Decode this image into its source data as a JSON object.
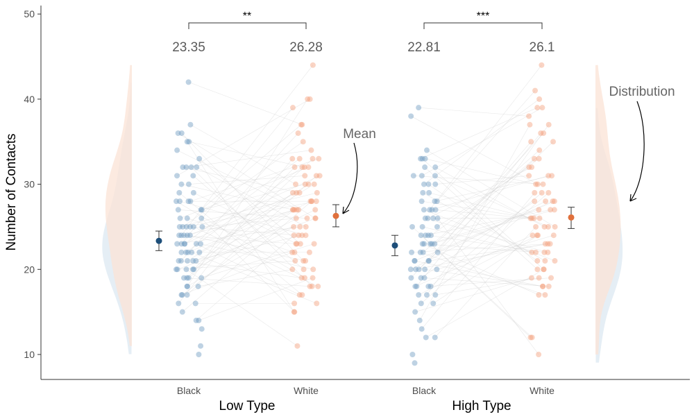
{
  "chart_data": {
    "type": "scatter",
    "title": "",
    "ylabel": "Number of Contacts",
    "ylim": [
      7,
      51
    ],
    "yticks": [
      10,
      20,
      30,
      40,
      50
    ],
    "grid": false,
    "colors": {
      "black_point": "#6f9bc0",
      "white_point": "#f4a07d",
      "black_mean": "#1d4e79",
      "white_mean": "#e0703c",
      "black_density": "#dce8f2",
      "white_density": "#fbe3d6",
      "overlap_density": "#e8dfdc",
      "line": "#cccccc"
    },
    "groups": [
      {
        "name": "Low Type",
        "categories": [
          "Black",
          "White"
        ],
        "means": [
          23.35,
          26.28
        ],
        "mean_labels": [
          "23.35",
          "26.28"
        ],
        "error_bars": [
          [
            22.2,
            24.5
          ],
          [
            25.0,
            27.6
          ]
        ],
        "significance": "**",
        "density_side": "left",
        "black_values": [
          42,
          37,
          36,
          36,
          35,
          35,
          34,
          33,
          32,
          32,
          32,
          32,
          31,
          31,
          30,
          30,
          29,
          29,
          28,
          28,
          28,
          28,
          27,
          27,
          27,
          26,
          26,
          26,
          25,
          25,
          25,
          25,
          25,
          25,
          24,
          24,
          24,
          24,
          24,
          23,
          23,
          23,
          23,
          23,
          23,
          22,
          22,
          22,
          22,
          22,
          21,
          21,
          21,
          21,
          21,
          20,
          20,
          20,
          20,
          20,
          19,
          19,
          19,
          19,
          18,
          18,
          18,
          17,
          17,
          17,
          16,
          16,
          15,
          14,
          14,
          13,
          11,
          10
        ],
        "white_values": [
          44,
          40,
          40,
          39,
          37,
          37,
          36,
          35,
          34,
          33,
          33,
          33,
          33,
          32,
          32,
          32,
          32,
          31,
          31,
          31,
          30,
          30,
          30,
          30,
          29,
          29,
          29,
          29,
          28,
          28,
          28,
          28,
          27,
          27,
          27,
          27,
          27,
          27,
          26,
          26,
          26,
          26,
          25,
          25,
          25,
          24,
          24,
          24,
          24,
          23,
          23,
          23,
          23,
          22,
          22,
          22,
          21,
          21,
          21,
          20,
          20,
          20,
          19,
          19,
          19,
          18,
          18,
          18,
          17,
          17,
          16,
          16,
          15,
          15,
          11
        ]
      },
      {
        "name": "High Type",
        "categories": [
          "Black",
          "White"
        ],
        "means": [
          22.81,
          26.1
        ],
        "mean_labels": [
          "22.81",
          "26.1"
        ],
        "error_bars": [
          [
            21.6,
            24.0
          ],
          [
            24.8,
            27.3
          ]
        ],
        "significance": "***",
        "density_side": "right",
        "black_values": [
          39,
          38,
          34,
          33,
          33,
          33,
          32,
          32,
          31,
          31,
          31,
          30,
          30,
          30,
          29,
          29,
          28,
          28,
          28,
          27,
          27,
          27,
          27,
          26,
          26,
          26,
          26,
          25,
          25,
          25,
          24,
          24,
          24,
          24,
          23,
          23,
          23,
          23,
          23,
          22,
          22,
          22,
          22,
          21,
          21,
          21,
          21,
          20,
          20,
          20,
          20,
          20,
          19,
          19,
          19,
          18,
          18,
          18,
          18,
          17,
          17,
          17,
          16,
          16,
          15,
          14,
          13,
          12,
          12,
          10,
          9
        ],
        "white_values": [
          44,
          41,
          40,
          39,
          39,
          38,
          37,
          37,
          36,
          36,
          35,
          35,
          34,
          33,
          33,
          32,
          32,
          31,
          31,
          31,
          30,
          30,
          30,
          29,
          29,
          29,
          28,
          28,
          28,
          28,
          27,
          27,
          27,
          26,
          26,
          26,
          26,
          25,
          25,
          25,
          25,
          24,
          24,
          24,
          24,
          23,
          23,
          23,
          22,
          22,
          22,
          22,
          21,
          21,
          21,
          20,
          20,
          20,
          19,
          19,
          19,
          18,
          18,
          18,
          17,
          17,
          12,
          12,
          10
        ]
      }
    ],
    "annotations": [
      {
        "text": "Mean"
      },
      {
        "text": "Distribution"
      }
    ]
  }
}
